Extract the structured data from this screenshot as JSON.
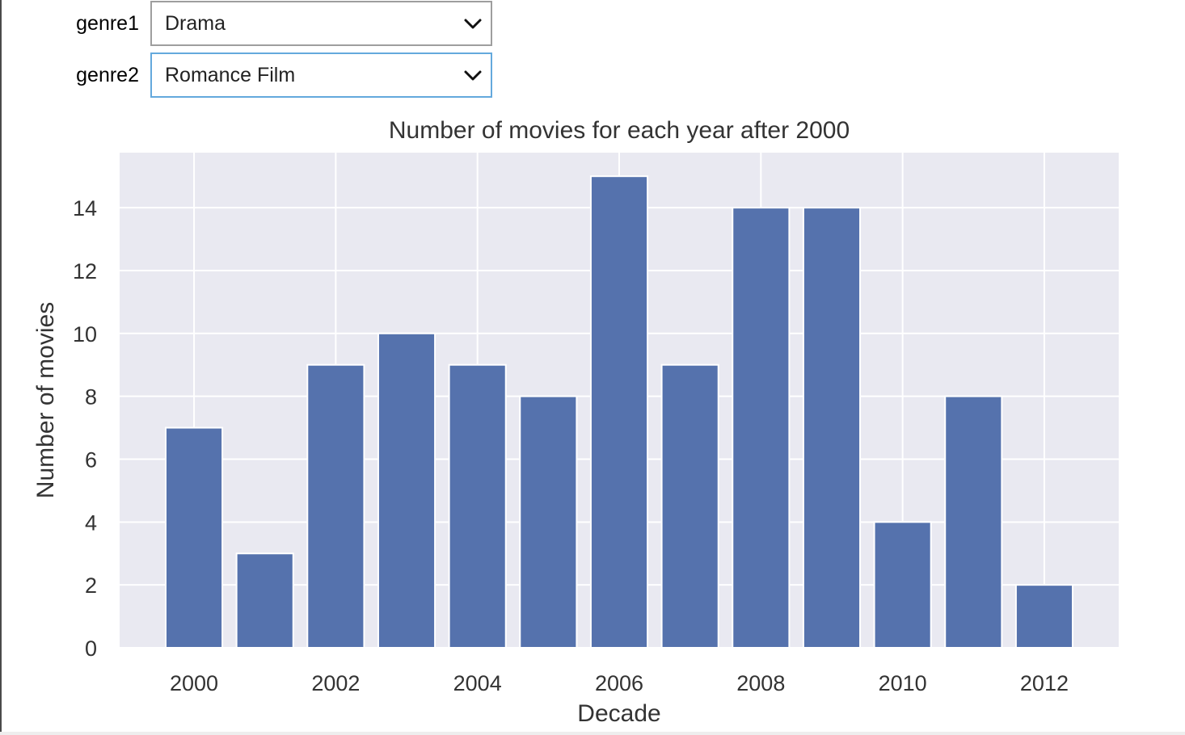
{
  "widgets": {
    "genre1": {
      "label": "genre1",
      "value": "Drama"
    },
    "genre2": {
      "label": "genre2",
      "value": "Romance Film"
    }
  },
  "icons": {
    "dropdown": "chevron-down-icon"
  },
  "colors": {
    "bar": "#5572ad",
    "plot_bg": "#e9e9f1",
    "grid": "#ffffff",
    "text": "#333333",
    "focus": "#64a9dd"
  },
  "chart_data": {
    "type": "bar",
    "title": "Number of movies for each year after 2000",
    "xlabel": "Decade",
    "ylabel": "Number of movies",
    "categories": [
      2000,
      2001,
      2002,
      2003,
      2004,
      2005,
      2006,
      2007,
      2008,
      2009,
      2010,
      2011,
      2012
    ],
    "values": [
      7,
      3,
      9,
      10,
      9,
      8,
      15,
      9,
      14,
      14,
      4,
      8,
      2
    ],
    "xticks": [
      2000,
      2002,
      2004,
      2006,
      2008,
      2010,
      2012
    ],
    "yticks": [
      0,
      2,
      4,
      6,
      8,
      10,
      12,
      14
    ],
    "xlim": [
      1998.95,
      2013.05
    ],
    "ylim": [
      0,
      15.75
    ],
    "grid": true,
    "legend": "none"
  }
}
